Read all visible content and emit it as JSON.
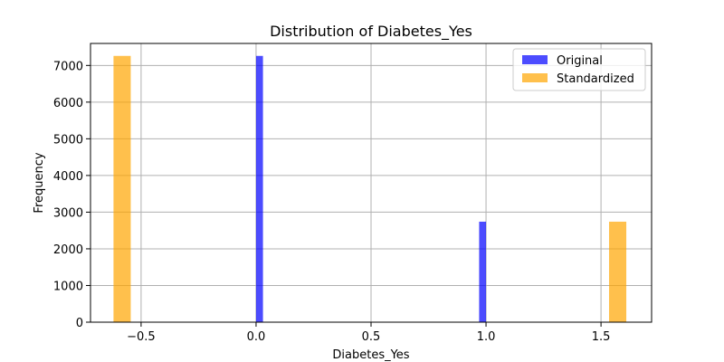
{
  "chart_data": {
    "type": "bar",
    "title": "Distribution of Diabetes_Yes",
    "xlabel": "Diabetes_Yes",
    "ylabel": "Frequency",
    "xlim": [
      -0.72,
      1.72
    ],
    "ylim": [
      0,
      7600
    ],
    "x_ticks": [
      -0.5,
      0.0,
      0.5,
      1.0,
      1.5
    ],
    "x_tick_labels": [
      "−0.5",
      "0.0",
      "0.5",
      "1.0",
      "1.5"
    ],
    "y_ticks": [
      0,
      1000,
      2000,
      3000,
      4000,
      5000,
      6000,
      7000
    ],
    "y_tick_labels": [
      "0",
      "1000",
      "2000",
      "3000",
      "4000",
      "5000",
      "6000",
      "7000"
    ],
    "grid": true,
    "legend_position": "top-right",
    "series": [
      {
        "name": "Original",
        "color": "#0000ff",
        "opacity": 0.7,
        "bars": [
          {
            "x0": 0.0,
            "x1": 0.03,
            "value": 7260
          },
          {
            "x0": 0.97,
            "x1": 1.0,
            "value": 2740
          }
        ]
      },
      {
        "name": "Standardized",
        "color": "#ffa500",
        "opacity": 0.7,
        "bars": [
          {
            "x0": -0.62,
            "x1": -0.545,
            "value": 7260
          },
          {
            "x0": 1.535,
            "x1": 1.61,
            "value": 2740
          }
        ]
      }
    ]
  }
}
